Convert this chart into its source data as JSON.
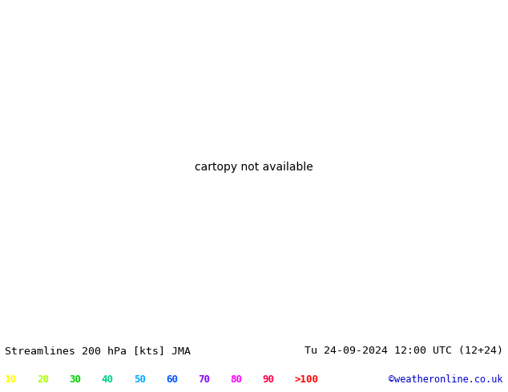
{
  "title_left": "Streamlines 200 hPa [kts] JMA",
  "title_right": "Tu 24-09-2024 12:00 UTC (12+24)",
  "credit": "©weatheronline.co.uk",
  "legend_values": [
    "10",
    "20",
    "30",
    "40",
    "50",
    "60",
    "70",
    "80",
    "90",
    ">100"
  ],
  "legend_colors": [
    "#ffff00",
    "#aaff00",
    "#00cc00",
    "#00cc88",
    "#00aaff",
    "#0055ff",
    "#8800ff",
    "#ff00ff",
    "#ff0044",
    "#ff0000"
  ],
  "speed_colors": {
    "10": "#ffff00",
    "20": "#ccff00",
    "30": "#66ff00",
    "40": "#00ff88",
    "50": "#00ccff",
    "60": "#0088ff",
    "70": "#0044ff",
    "80": "#8800cc",
    "90": "#ff00aa",
    "100": "#ff0000"
  },
  "ocean_color": "#d8d8d8",
  "land_color": "#c8ffc8",
  "border_color": "#222222",
  "bottom_bar_color": "#b8e8b8",
  "figsize": [
    6.34,
    4.9
  ],
  "dpi": 100,
  "lon_min": 0,
  "lon_max": 40,
  "lat_min": 54,
  "lat_max": 72,
  "title_fontsize": 9.5,
  "credit_fontsize": 8.5,
  "legend_fontsize": 9
}
